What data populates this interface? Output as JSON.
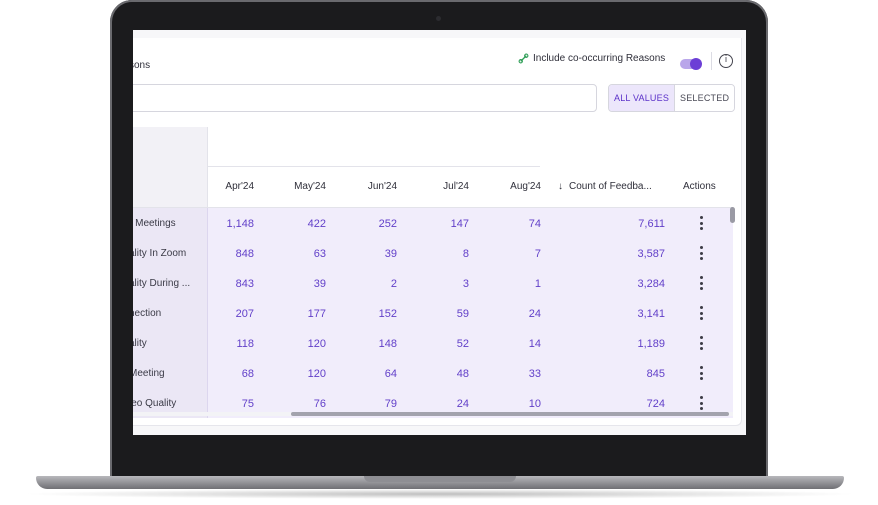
{
  "header": {
    "title": "sons",
    "co_occurring_label": "Include co-occurring Reasons",
    "info_glyph": "i"
  },
  "search": {
    "placeholder": ""
  },
  "filter": {
    "all_values": "ALL VALUES",
    "selected": "SELECTED",
    "active": "ALL VALUES"
  },
  "table": {
    "columns": [
      "Apr'24",
      "May'24",
      "Jun'24",
      "Jul'24",
      "Aug'24"
    ],
    "count_header": "Count of Feedba...",
    "sort_glyph": "↓",
    "actions_header": "Actions",
    "rows": [
      {
        "label": "r Meetings",
        "values": [
          "1,148",
          "422",
          "252",
          "147",
          "74"
        ],
        "count": "7,611"
      },
      {
        "label": "ality In Zoom",
        "values": [
          "848",
          "63",
          "39",
          "8",
          "7"
        ],
        "count": "3,587"
      },
      {
        "label": "ality During ...",
        "values": [
          "843",
          "39",
          "2",
          "3",
          "1"
        ],
        "count": "3,284"
      },
      {
        "label": "nection",
        "values": [
          "207",
          "177",
          "152",
          "59",
          "24"
        ],
        "count": "3,141"
      },
      {
        "label": "ality",
        "values": [
          "118",
          "120",
          "148",
          "52",
          "14"
        ],
        "count": "1,189"
      },
      {
        "label": "Meeting",
        "values": [
          "68",
          "120",
          "64",
          "48",
          "33"
        ],
        "count": "845"
      },
      {
        "label": "leo Quality",
        "values": [
          "75",
          "76",
          "79",
          "24",
          "10"
        ],
        "count": "724"
      }
    ]
  },
  "colors": {
    "accent": "#6c3fd6",
    "value_text": "#6240c9",
    "row_bg": "#f1edfb"
  }
}
